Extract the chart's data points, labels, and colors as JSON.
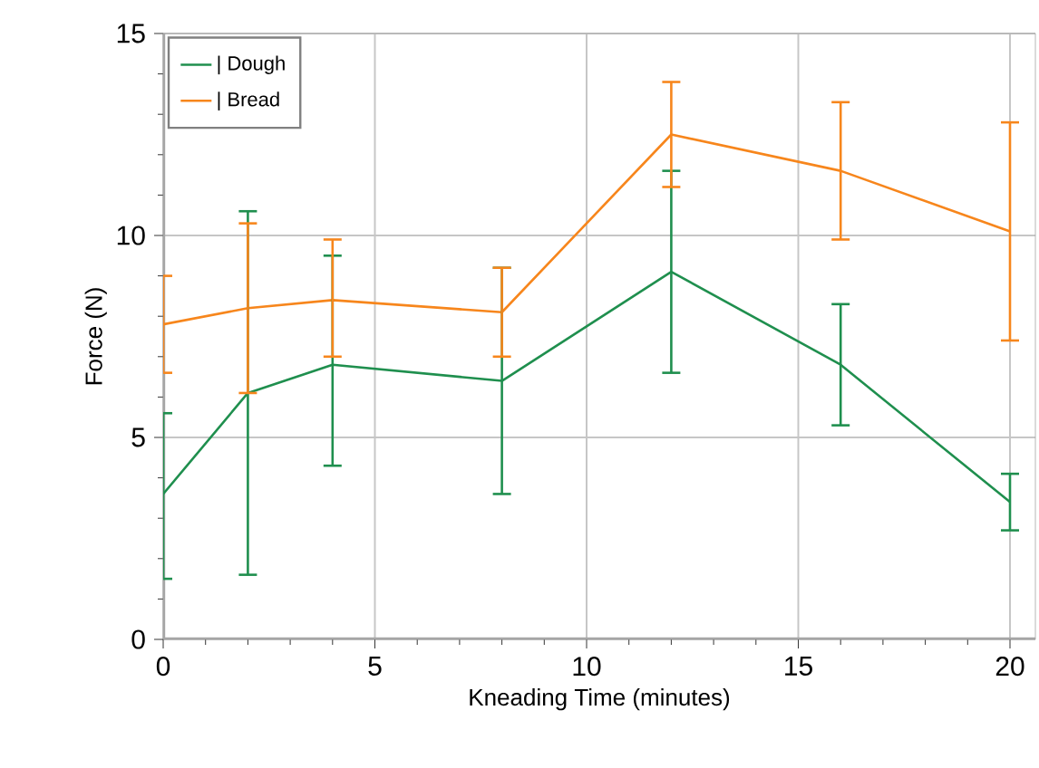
{
  "chart_data": {
    "type": "line",
    "xlabel": "Kneading Time (minutes)",
    "ylabel": "Force (N)",
    "x": [
      0,
      2,
      4,
      8,
      12,
      16,
      20
    ],
    "series": [
      {
        "name": "| Dough",
        "color": "#1f8f4e",
        "values": [
          3.6,
          6.1,
          6.8,
          6.4,
          9.1,
          6.8,
          3.4
        ],
        "errors": [
          [
            1.5,
            5.6
          ],
          [
            1.6,
            10.6
          ],
          [
            4.3,
            9.5
          ],
          [
            3.6,
            9.2
          ],
          [
            6.6,
            11.6
          ],
          [
            5.3,
            8.3
          ],
          [
            2.7,
            4.1
          ]
        ]
      },
      {
        "name": "| Bread",
        "color": "#f7861c",
        "values": [
          7.8,
          8.2,
          8.4,
          8.1,
          12.5,
          11.6,
          10.1
        ],
        "errors": [
          [
            6.6,
            9.0
          ],
          [
            6.1,
            10.3
          ],
          [
            7.0,
            9.9
          ],
          [
            7.0,
            9.2
          ],
          [
            11.2,
            13.8
          ],
          [
            9.9,
            13.3
          ],
          [
            7.4,
            12.8
          ]
        ]
      }
    ],
    "xlim": [
      0,
      20.6
    ],
    "ylim": [
      0,
      15
    ],
    "xticks": [
      0,
      5,
      10,
      15,
      20
    ],
    "yticks": [
      0,
      5,
      10,
      15
    ],
    "grid": true,
    "legend": "top left",
    "marker": "none",
    "line_style": "solid"
  }
}
